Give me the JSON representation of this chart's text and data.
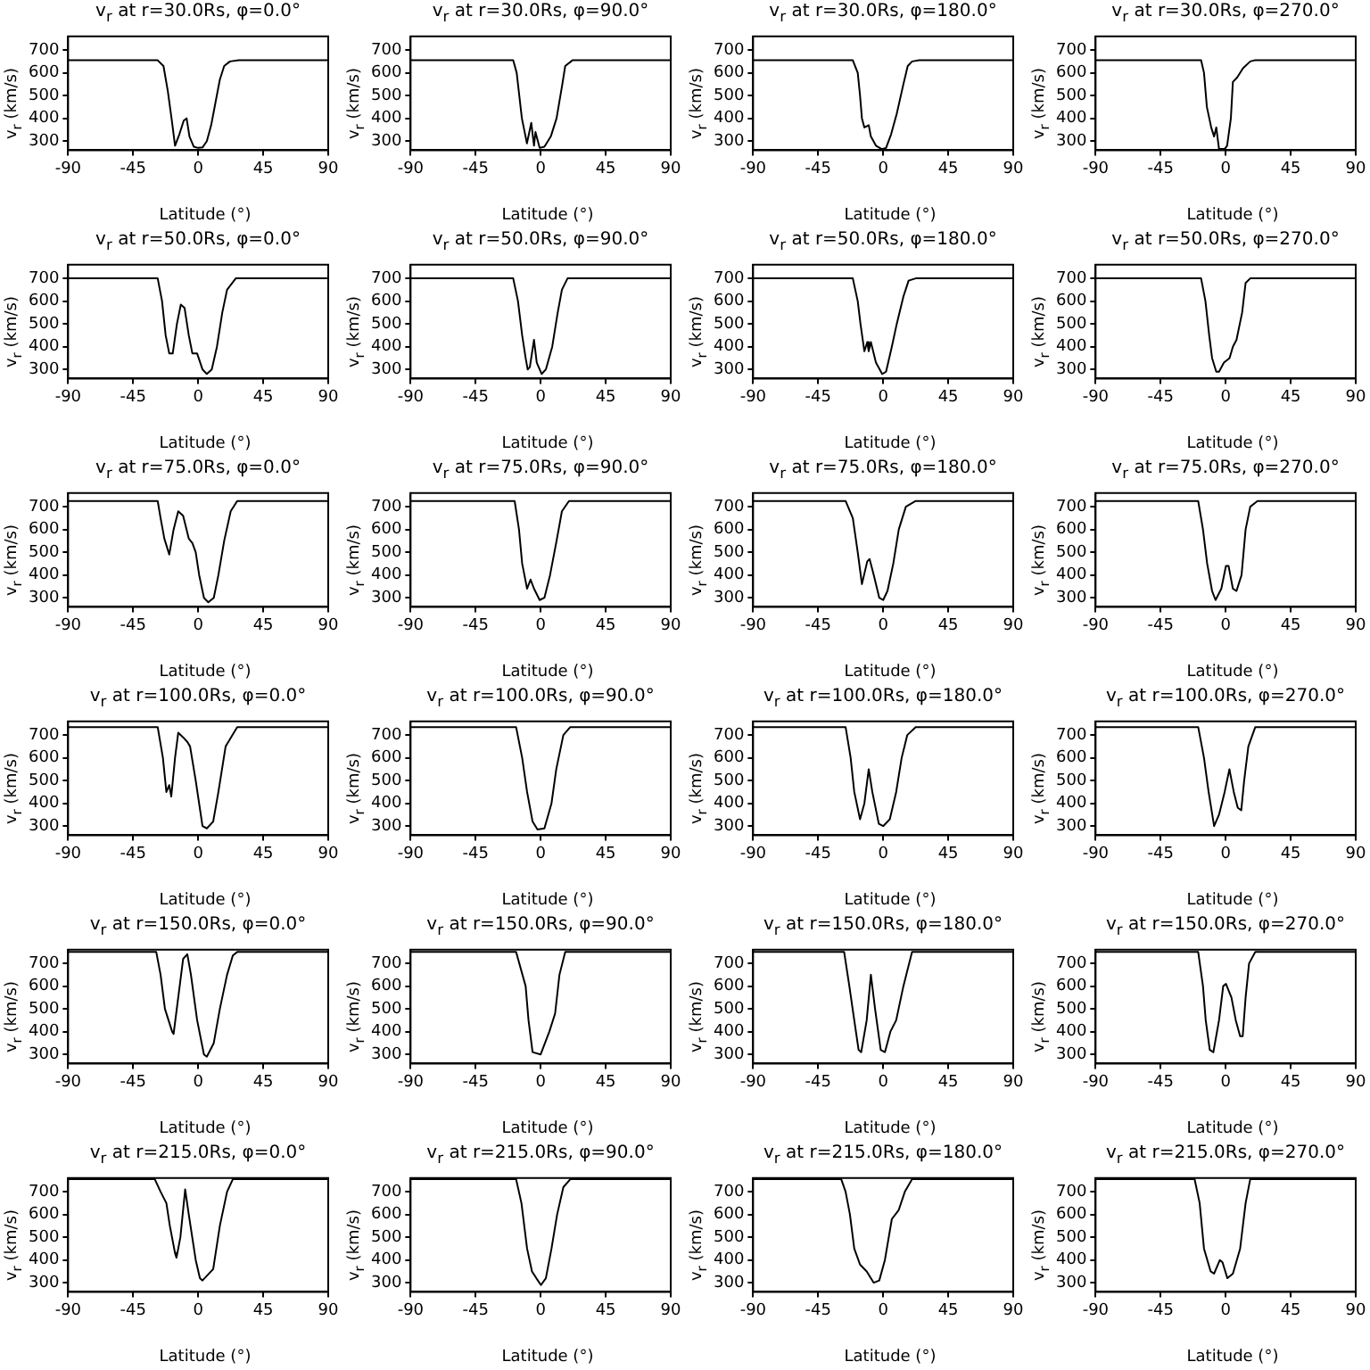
{
  "chart_data": [
    {
      "type": "line",
      "title": "v$_{r}$ at r=30.0Rs, φ=0.0°",
      "xlabel": "Latitude (°)",
      "ylabel": "v$_{r}$ (km/s)",
      "xlim": [
        -90,
        90
      ],
      "ylim": [
        260,
        760
      ],
      "xticks": [
        -90,
        -45,
        0,
        45,
        90
      ],
      "yticks": [
        300,
        400,
        500,
        600,
        700
      ],
      "series": [
        {
          "color": "#000000",
          "x": [
            -90,
            -28,
            -24,
            -21,
            -18,
            -16,
            -13,
            -10,
            -8,
            -6,
            -3,
            0,
            3,
            6,
            9,
            12,
            15,
            18,
            22,
            28,
            90
          ],
          "values": [
            655,
            655,
            630,
            520,
            380,
            280,
            330,
            390,
            400,
            320,
            275,
            270,
            272,
            300,
            370,
            470,
            570,
            630,
            650,
            655,
            655
          ]
        }
      ]
    },
    {
      "type": "line",
      "title": "v$_{r}$ at r=30.0Rs, φ=90.0°",
      "xlabel": "Latitude (°)",
      "ylabel": "v$_{r}$ (km/s)",
      "xlim": [
        -90,
        90
      ],
      "ylim": [
        260,
        760
      ],
      "xticks": [
        -90,
        -45,
        0,
        45,
        90
      ],
      "yticks": [
        300,
        400,
        500,
        600,
        700
      ],
      "series": [
        {
          "color": "#000000",
          "x": [
            -90,
            -19,
            -16.6,
            -13,
            -9.5,
            -6.5,
            -4.6,
            -3.6,
            -0.7,
            2.6,
            7,
            11,
            15,
            17,
            22,
            90
          ],
          "values": [
            655,
            655,
            600,
            400,
            290,
            380,
            280,
            340,
            270,
            275,
            320,
            400,
            550,
            630,
            655,
            655
          ]
        }
      ]
    },
    {
      "type": "line",
      "title": "v$_{r}$ at r=30.0Rs, φ=180.0°",
      "xlabel": "Latitude (°)",
      "ylabel": "v$_{r}$ (km/s)",
      "xlim": [
        -90,
        90
      ],
      "ylim": [
        260,
        760
      ],
      "xticks": [
        -90,
        -45,
        0,
        45,
        90
      ],
      "yticks": [
        300,
        400,
        500,
        600,
        700
      ],
      "series": [
        {
          "color": "#000000",
          "x": [
            -90,
            -21,
            -17.6,
            -16,
            -14.7,
            -13,
            -10,
            -8.5,
            -5,
            -1,
            2,
            5.5,
            9.4,
            14,
            17,
            20,
            25,
            90
          ],
          "values": [
            655,
            655,
            600,
            500,
            400,
            360,
            370,
            320,
            280,
            265,
            270,
            330,
            420,
            550,
            630,
            650,
            655,
            655
          ]
        }
      ]
    },
    {
      "type": "line",
      "title": "v$_{r}$ at r=30.0Rs, φ=270.0°",
      "xlabel": "Latitude (°)",
      "ylabel": "v$_{r}$ (km/s)",
      "xlim": [
        -90,
        90
      ],
      "ylim": [
        260,
        760
      ],
      "xticks": [
        -90,
        -45,
        0,
        45,
        90
      ],
      "yticks": [
        300,
        400,
        500,
        600,
        700
      ],
      "series": [
        {
          "color": "#000000",
          "x": [
            -90,
            -17,
            -15,
            -13,
            -10,
            -8,
            -6.5,
            -4.6,
            -0.7,
            1,
            3.6,
            5,
            8,
            12,
            17,
            20,
            90
          ],
          "values": [
            655,
            655,
            600,
            450,
            360,
            320,
            360,
            265,
            265,
            280,
            400,
            560,
            580,
            620,
            650,
            655,
            655
          ]
        }
      ]
    },
    {
      "type": "line",
      "title": "v$_{r}$ at r=50.0Rs, φ=0.0°",
      "xlabel": "Latitude (°)",
      "ylabel": "v$_{r}$ (km/s)",
      "xlim": [
        -90,
        90
      ],
      "ylim": [
        260,
        760
      ],
      "xticks": [
        -90,
        -45,
        0,
        45,
        90
      ],
      "yticks": [
        300,
        400,
        500,
        600,
        700
      ],
      "series": [
        {
          "color": "#000000",
          "x": [
            -90,
            -28,
            -25,
            -22.5,
            -20,
            -17.6,
            -14.7,
            -12,
            -9.4,
            -6.5,
            -4,
            -0.7,
            3,
            6,
            9.4,
            13,
            16.7,
            20,
            26,
            90
          ],
          "values": [
            700,
            700,
            600,
            450,
            370,
            370,
            500,
            585,
            570,
            450,
            370,
            370,
            300,
            280,
            300,
            400,
            550,
            650,
            700,
            700
          ]
        }
      ]
    },
    {
      "type": "line",
      "title": "v$_{r}$ at r=50.0Rs, φ=90.0°",
      "xlabel": "Latitude (°)",
      "ylabel": "v$_{r}$ (km/s)",
      "xlim": [
        -90,
        90
      ],
      "ylim": [
        260,
        760
      ],
      "xticks": [
        -90,
        -45,
        0,
        45,
        90
      ],
      "yticks": [
        300,
        400,
        500,
        600,
        700
      ],
      "series": [
        {
          "color": "#000000",
          "x": [
            -90,
            -19,
            -15.7,
            -12.8,
            -10.4,
            -9,
            -7.5,
            -4.6,
            -2.7,
            0.7,
            3.6,
            8,
            11.8,
            14.7,
            18.6,
            90
          ],
          "values": [
            700,
            700,
            600,
            450,
            350,
            300,
            310,
            430,
            330,
            280,
            300,
            400,
            550,
            650,
            700,
            700
          ]
        }
      ]
    },
    {
      "type": "line",
      "title": "v$_{r}$ at r=50.0Rs, φ=180.0°",
      "xlabel": "Latitude (°)",
      "ylabel": "v$_{r}$ (km/s)",
      "xlim": [
        -90,
        90
      ],
      "ylim": [
        260,
        760
      ],
      "xticks": [
        -90,
        -45,
        0,
        45,
        90
      ],
      "yticks": [
        300,
        400,
        500,
        600,
        700
      ],
      "series": [
        {
          "color": "#000000",
          "x": [
            -90,
            -21,
            -17.6,
            -15.7,
            -13,
            -11,
            -10,
            -8.5,
            -5,
            -0.7,
            2,
            6,
            9.4,
            14,
            17.6,
            22.5,
            90
          ],
          "values": [
            700,
            700,
            600,
            500,
            380,
            420,
            380,
            420,
            330,
            280,
            290,
            400,
            500,
            620,
            690,
            700,
            700
          ]
        }
      ]
    },
    {
      "type": "line",
      "title": "v$_{r}$ at r=50.0Rs, φ=270.0°",
      "xlabel": "Latitude (°)",
      "ylabel": "v$_{r}$ (km/s)",
      "xlim": [
        -90,
        90
      ],
      "ylim": [
        260,
        760
      ],
      "xticks": [
        -90,
        -45,
        0,
        45,
        90
      ],
      "yticks": [
        300,
        400,
        500,
        600,
        700
      ],
      "series": [
        {
          "color": "#000000",
          "x": [
            -90,
            -17,
            -14,
            -11.4,
            -9.4,
            -6.5,
            -4.6,
            -1.2,
            2.7,
            5,
            7.5,
            11.4,
            13.8,
            17,
            90
          ],
          "values": [
            700,
            700,
            600,
            450,
            350,
            290,
            290,
            330,
            350,
            400,
            430,
            550,
            680,
            700,
            700
          ]
        }
      ]
    },
    {
      "type": "line",
      "title": "v$_{r}$ at r=75.0Rs, φ=0.0°",
      "xlabel": "Latitude (°)",
      "ylabel": "v$_{r}$ (km/s)",
      "xlim": [
        -90,
        90
      ],
      "ylim": [
        260,
        760
      ],
      "xticks": [
        -90,
        -45,
        0,
        45,
        90
      ],
      "yticks": [
        300,
        400,
        500,
        600,
        700
      ],
      "series": [
        {
          "color": "#000000",
          "x": [
            -90,
            -28,
            -26,
            -23.4,
            -20,
            -17,
            -13.8,
            -10.4,
            -6.5,
            -4,
            -1.7,
            0.7,
            4,
            7,
            10.8,
            14,
            18,
            22.5,
            27,
            90
          ],
          "values": [
            725,
            725,
            650,
            560,
            490,
            600,
            680,
            660,
            560,
            540,
            500,
            400,
            300,
            280,
            300,
            400,
            550,
            680,
            725,
            725
          ]
        }
      ]
    },
    {
      "type": "line",
      "title": "v$_{r}$ at r=75.0Rs, φ=90.0°",
      "xlabel": "Latitude (°)",
      "ylabel": "v$_{r}$ (km/s)",
      "xlim": [
        -90,
        90
      ],
      "ylim": [
        260,
        760
      ],
      "xticks": [
        -90,
        -45,
        0,
        45,
        90
      ],
      "yticks": [
        300,
        400,
        500,
        600,
        700
      ],
      "series": [
        {
          "color": "#000000",
          "x": [
            -90,
            -18,
            -15,
            -12.8,
            -9.4,
            -7,
            -4.6,
            -0.7,
            2.6,
            6.5,
            11,
            14.7,
            19.6,
            90
          ],
          "values": [
            725,
            725,
            600,
            450,
            340,
            380,
            340,
            290,
            300,
            400,
            550,
            680,
            725,
            725
          ]
        }
      ]
    },
    {
      "type": "line",
      "title": "v$_{r}$ at r=75.0Rs, φ=180.0°",
      "xlabel": "Latitude (°)",
      "ylabel": "v$_{r}$ (km/s)",
      "xlim": [
        -90,
        90
      ],
      "ylim": [
        260,
        760
      ],
      "xticks": [
        -90,
        -45,
        0,
        45,
        90
      ],
      "yticks": [
        300,
        400,
        500,
        600,
        700
      ],
      "series": [
        {
          "color": "#000000",
          "x": [
            -90,
            -26,
            -21,
            -17.6,
            -14.7,
            -11,
            -9.4,
            -6.5,
            -2.7,
            0,
            3,
            7,
            10.8,
            15.7,
            22.5,
            90
          ],
          "values": [
            725,
            725,
            650,
            500,
            360,
            460,
            470,
            400,
            300,
            290,
            330,
            450,
            600,
            700,
            725,
            725
          ]
        }
      ]
    },
    {
      "type": "line",
      "title": "v$_{r}$ at r=75.0Rs, φ=270.0°",
      "xlabel": "Latitude (°)",
      "ylabel": "v$_{r}$ (km/s)",
      "xlim": [
        -90,
        90
      ],
      "ylim": [
        260,
        760
      ],
      "xticks": [
        -90,
        -45,
        0,
        45,
        90
      ],
      "yticks": [
        300,
        400,
        500,
        600,
        700
      ],
      "series": [
        {
          "color": "#000000",
          "x": [
            -90,
            -19,
            -15.7,
            -12.8,
            -9.4,
            -7,
            -3,
            0.2,
            2,
            5,
            7.5,
            11,
            13.8,
            17,
            22,
            90
          ],
          "values": [
            725,
            725,
            600,
            450,
            330,
            290,
            340,
            440,
            440,
            340,
            330,
            400,
            600,
            700,
            725,
            725
          ]
        }
      ]
    },
    {
      "type": "line",
      "title": "v$_{r}$ at r=100.0Rs, φ=0.0°",
      "xlabel": "Latitude (°)",
      "ylabel": "v$_{r}$ (km/s)",
      "xlim": [
        -90,
        90
      ],
      "ylim": [
        260,
        760
      ],
      "xticks": [
        -90,
        -45,
        0,
        45,
        90
      ],
      "yticks": [
        300,
        400,
        500,
        600,
        700
      ],
      "series": [
        {
          "color": "#000000",
          "x": [
            -90,
            -28,
            -24.4,
            -22,
            -20,
            -18.6,
            -16,
            -13.8,
            -10.4,
            -7.5,
            -5.6,
            -1.7,
            3,
            6,
            10.4,
            14,
            19,
            27,
            90
          ],
          "values": [
            735,
            735,
            600,
            450,
            480,
            430,
            600,
            710,
            690,
            670,
            650,
            500,
            300,
            290,
            320,
            450,
            650,
            735,
            735
          ]
        }
      ]
    },
    {
      "type": "line",
      "title": "v$_{r}$ at r=100.0Rs, φ=90.0°",
      "xlabel": "Latitude (°)",
      "ylabel": "v$_{r}$ (km/s)",
      "xlim": [
        -90,
        90
      ],
      "ylim": [
        260,
        760
      ],
      "xticks": [
        -90,
        -45,
        0,
        45,
        90
      ],
      "yticks": [
        300,
        400,
        500,
        600,
        700
      ],
      "series": [
        {
          "color": "#000000",
          "x": [
            -90,
            -17,
            -12.8,
            -9.4,
            -5.6,
            -2.2,
            2.6,
            7.5,
            10.8,
            15.7,
            20.5,
            90
          ],
          "values": [
            735,
            735,
            600,
            450,
            320,
            285,
            290,
            400,
            550,
            700,
            735,
            735
          ]
        }
      ]
    },
    {
      "type": "line",
      "title": "v$_{r}$ at r=100.0Rs, φ=180.0°",
      "xlabel": "Latitude (°)",
      "ylabel": "v$_{r}$ (km/s)",
      "xlim": [
        -90,
        90
      ],
      "ylim": [
        260,
        760
      ],
      "xticks": [
        -90,
        -45,
        0,
        45,
        90
      ],
      "yticks": [
        300,
        400,
        500,
        600,
        700
      ],
      "series": [
        {
          "color": "#000000",
          "x": [
            -90,
            -26,
            -22.5,
            -20,
            -16,
            -13,
            -10,
            -7.5,
            -3,
            0,
            4.6,
            9,
            12.8,
            16.7,
            22.5,
            90
          ],
          "values": [
            735,
            735,
            600,
            450,
            330,
            400,
            550,
            450,
            310,
            300,
            330,
            450,
            600,
            700,
            735,
            735
          ]
        }
      ]
    },
    {
      "type": "line",
      "title": "v$_{r}$ at r=100.0Rs, φ=270.0°",
      "xlabel": "Latitude (°)",
      "ylabel": "v$_{r}$ (km/s)",
      "xlim": [
        -90,
        90
      ],
      "ylim": [
        260,
        760
      ],
      "xticks": [
        -90,
        -45,
        0,
        45,
        90
      ],
      "yticks": [
        300,
        400,
        500,
        600,
        700
      ],
      "series": [
        {
          "color": "#000000",
          "x": [
            -90,
            -19,
            -15,
            -11.8,
            -8,
            -4.6,
            -0.7,
            2.6,
            5.6,
            8.4,
            10.8,
            12.8,
            15.7,
            20.5,
            90
          ],
          "values": [
            735,
            735,
            600,
            450,
            300,
            350,
            450,
            550,
            450,
            380,
            370,
            500,
            650,
            735,
            735
          ]
        }
      ]
    },
    {
      "type": "line",
      "title": "v$_{r}$ at r=150.0Rs, φ=0.0°",
      "xlabel": "Latitude (°)",
      "ylabel": "v$_{r}$ (km/s)",
      "xlim": [
        -90,
        90
      ],
      "ylim": [
        260,
        760
      ],
      "xticks": [
        -90,
        -45,
        0,
        45,
        90
      ],
      "yticks": [
        300,
        400,
        500,
        600,
        700
      ],
      "series": [
        {
          "color": "#000000",
          "x": [
            -90,
            -29,
            -26,
            -23,
            -18,
            -17,
            -13.8,
            -10.4,
            -7.5,
            -5,
            -0.7,
            4,
            6,
            10.8,
            15,
            20,
            24,
            27,
            90
          ],
          "values": [
            750,
            750,
            650,
            500,
            400,
            390,
            550,
            720,
            740,
            650,
            450,
            300,
            290,
            350,
            500,
            650,
            735,
            750,
            750
          ]
        }
      ]
    },
    {
      "type": "line",
      "title": "v$_{r}$ at r=150.0Rs, φ=90.0°",
      "xlabel": "Latitude (°)",
      "ylabel": "v$_{r}$ (km/s)",
      "xlim": [
        -90,
        90
      ],
      "ylim": [
        260,
        760
      ],
      "xticks": [
        -90,
        -45,
        0,
        45,
        90
      ],
      "yticks": [
        300,
        400,
        500,
        600,
        700
      ],
      "series": [
        {
          "color": "#000000",
          "x": [
            -90,
            -17,
            -10.4,
            -8.4,
            -5.6,
            0,
            6,
            10,
            13,
            17,
            90
          ],
          "values": [
            750,
            750,
            600,
            450,
            310,
            300,
            400,
            480,
            650,
            750,
            750
          ]
        }
      ]
    },
    {
      "type": "line",
      "title": "v$_{r}$ at r=150.0Rs, φ=180.0°",
      "xlabel": "Latitude (°)",
      "ylabel": "v$_{r}$ (km/s)",
      "xlim": [
        -90,
        90
      ],
      "ylim": [
        260,
        760
      ],
      "xticks": [
        -90,
        -45,
        0,
        45,
        90
      ],
      "yticks": [
        300,
        400,
        500,
        600,
        700
      ],
      "series": [
        {
          "color": "#000000",
          "x": [
            -90,
            -27,
            -23.4,
            -20,
            -17,
            -15.2,
            -11.4,
            -8.5,
            -5.6,
            -1.7,
            1.2,
            5,
            9,
            14,
            20,
            90
          ],
          "values": [
            750,
            750,
            600,
            450,
            320,
            310,
            450,
            650,
            500,
            320,
            310,
            400,
            450,
            600,
            750,
            750
          ]
        }
      ]
    },
    {
      "type": "line",
      "title": "v$_{r}$ at r=150.0Rs, φ=270.0°",
      "xlabel": "Latitude (°)",
      "ylabel": "v$_{r}$ (km/s)",
      "xlim": [
        -90,
        90
      ],
      "ylim": [
        260,
        760
      ],
      "xticks": [
        -90,
        -45,
        0,
        45,
        90
      ],
      "yticks": [
        300,
        400,
        500,
        600,
        700
      ],
      "series": [
        {
          "color": "#000000",
          "x": [
            -90,
            -19,
            -15.7,
            -13.8,
            -11,
            -8.5,
            -4.6,
            -1.7,
            0.2,
            4,
            7,
            10,
            11.8,
            13.8,
            16.2,
            20.5,
            90
          ],
          "values": [
            750,
            750,
            600,
            450,
            320,
            310,
            450,
            600,
            610,
            550,
            450,
            380,
            380,
            550,
            700,
            750,
            750
          ]
        }
      ]
    },
    {
      "type": "line",
      "title": "v$_{r}$ at r=215.0Rs, φ=0.0°",
      "xlabel": "Latitude (°)",
      "ylabel": "v$_{r}$ (km/s)",
      "xlim": [
        -90,
        90
      ],
      "ylim": [
        260,
        760
      ],
      "xticks": [
        -90,
        -45,
        0,
        45,
        90
      ],
      "yticks": [
        300,
        400,
        500,
        600,
        700
      ],
      "series": [
        {
          "color": "#000000",
          "x": [
            -90,
            -30,
            -26,
            -22,
            -19.6,
            -16,
            -15,
            -12.3,
            -9,
            -6.5,
            -1.7,
            1.2,
            3,
            10.4,
            15,
            20,
            24,
            90
          ],
          "values": [
            755,
            755,
            700,
            650,
            550,
            430,
            410,
            500,
            710,
            600,
            400,
            320,
            310,
            360,
            550,
            700,
            755,
            755
          ]
        }
      ]
    },
    {
      "type": "line",
      "title": "v$_{r}$ at r=215.0Rs, φ=90.0°",
      "xlabel": "Latitude (°)",
      "ylabel": "v$_{r}$ (km/s)",
      "xlim": [
        -90,
        90
      ],
      "ylim": [
        260,
        760
      ],
      "xticks": [
        -90,
        -45,
        0,
        45,
        90
      ],
      "yticks": [
        300,
        400,
        500,
        600,
        700
      ],
      "series": [
        {
          "color": "#000000",
          "x": [
            -90,
            -17,
            -13.3,
            -9.4,
            -6,
            -3,
            0.2,
            3.6,
            7.5,
            11.4,
            15.7,
            20.5,
            90
          ],
          "values": [
            755,
            755,
            650,
            450,
            350,
            320,
            290,
            320,
            450,
            600,
            720,
            755,
            755
          ]
        }
      ]
    },
    {
      "type": "line",
      "title": "v$_{r}$ at r=215.0Rs, φ=180.0°",
      "xlabel": "Latitude (°)",
      "ylabel": "v$_{r}$ (km/s)",
      "xlim": [
        -90,
        90
      ],
      "ylim": [
        260,
        760
      ],
      "xticks": [
        -90,
        -45,
        0,
        45,
        90
      ],
      "yticks": [
        300,
        400,
        500,
        600,
        700
      ],
      "series": [
        {
          "color": "#000000",
          "x": [
            -90,
            -29,
            -26,
            -23,
            -20,
            -16,
            -11.4,
            -6.5,
            -2.7,
            1.2,
            6,
            10.8,
            15,
            20,
            90
          ],
          "values": [
            755,
            755,
            700,
            600,
            450,
            380,
            350,
            300,
            310,
            400,
            580,
            620,
            700,
            755,
            755
          ]
        }
      ]
    },
    {
      "type": "line",
      "title": "v$_{r}$ at r=215.0Rs, φ=270.0°",
      "xlabel": "Latitude (°)",
      "ylabel": "v$_{r}$ (km/s)",
      "xlim": [
        -90,
        90
      ],
      "ylim": [
        260,
        760
      ],
      "xticks": [
        -90,
        -45,
        0,
        45,
        90
      ],
      "yticks": [
        300,
        400,
        500,
        600,
        700
      ],
      "series": [
        {
          "color": "#000000",
          "x": [
            -90,
            -21.5,
            -18,
            -15,
            -10.4,
            -8,
            -4,
            -2.2,
            1.2,
            5,
            10,
            13.8,
            17,
            90
          ],
          "values": [
            755,
            755,
            650,
            450,
            350,
            340,
            400,
            390,
            320,
            340,
            450,
            650,
            755,
            755
          ]
        }
      ]
    }
  ]
}
